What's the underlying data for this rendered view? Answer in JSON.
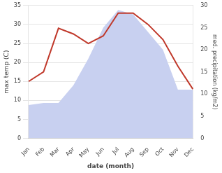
{
  "chart_data": {
    "type": "line",
    "categories": [
      "Jan",
      "Feb",
      "Mar",
      "Apr",
      "May",
      "Jun",
      "Jul",
      "Aug",
      "Sep",
      "Oct",
      "Nov",
      "Dec"
    ],
    "series": [
      {
        "type": "area",
        "color": "#c8d0f0",
        "axis": "y2",
        "values": [
          7.5,
          8.0,
          8.0,
          12.0,
          18.0,
          25.0,
          29.0,
          28.0,
          24.0,
          20.0,
          11.0,
          11.0
        ]
      },
      {
        "type": "line",
        "color": "#c0392b",
        "values": [
          15.0,
          17.5,
          29.0,
          27.5,
          25.0,
          27.0,
          33.0,
          33.0,
          30.0,
          26.0,
          19.0,
          13.0
        ]
      }
    ],
    "x_label": "date (month)",
    "y_label": "max temp (C)",
    "y2_label": "med. precipitation (kg/m2)",
    "ylim": [
      0,
      35
    ],
    "yticks": [
      0,
      5,
      10,
      15,
      20,
      25,
      30,
      35
    ],
    "y2lim": [
      0,
      30
    ],
    "y2ticks": [
      0,
      5,
      10,
      15,
      20,
      25,
      30
    ],
    "grid": true
  }
}
